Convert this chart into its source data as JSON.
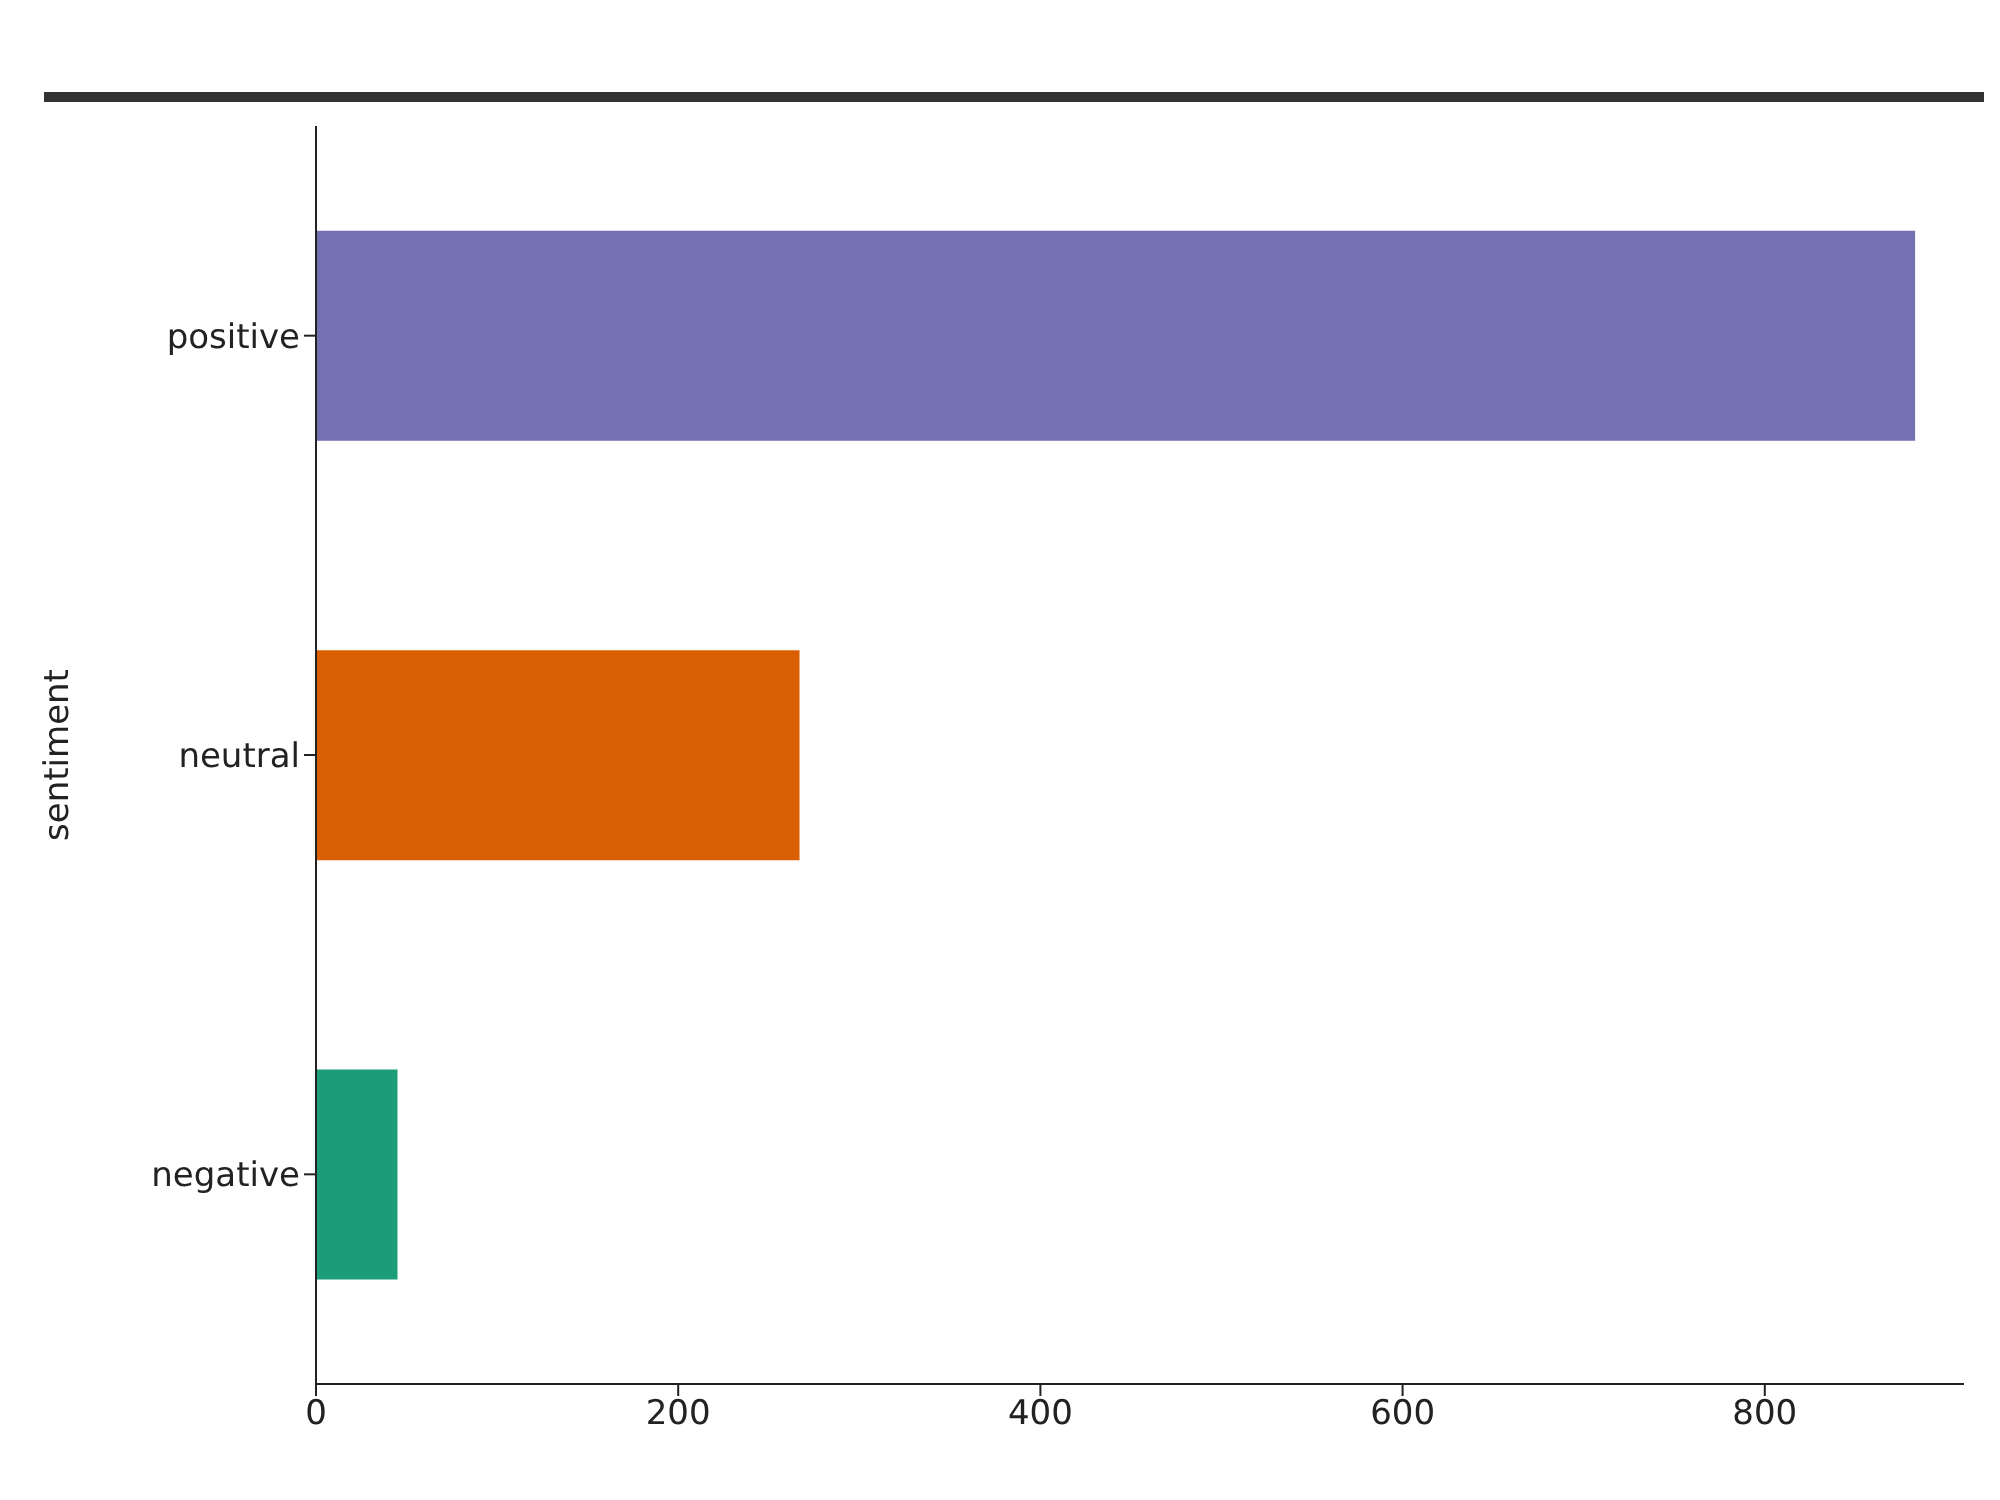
{
  "chart_data": {
    "type": "bar",
    "orientation": "horizontal",
    "categories": [
      "positive",
      "neutral",
      "negative"
    ],
    "values": [
      883,
      267,
      45
    ],
    "colors": [
      "#7570b3",
      "#d95f02",
      "#1b9e77"
    ],
    "ylabel": "sentiment",
    "xlim": [
      0,
      910
    ],
    "xticks": [
      0,
      200,
      400,
      600,
      800
    ]
  }
}
